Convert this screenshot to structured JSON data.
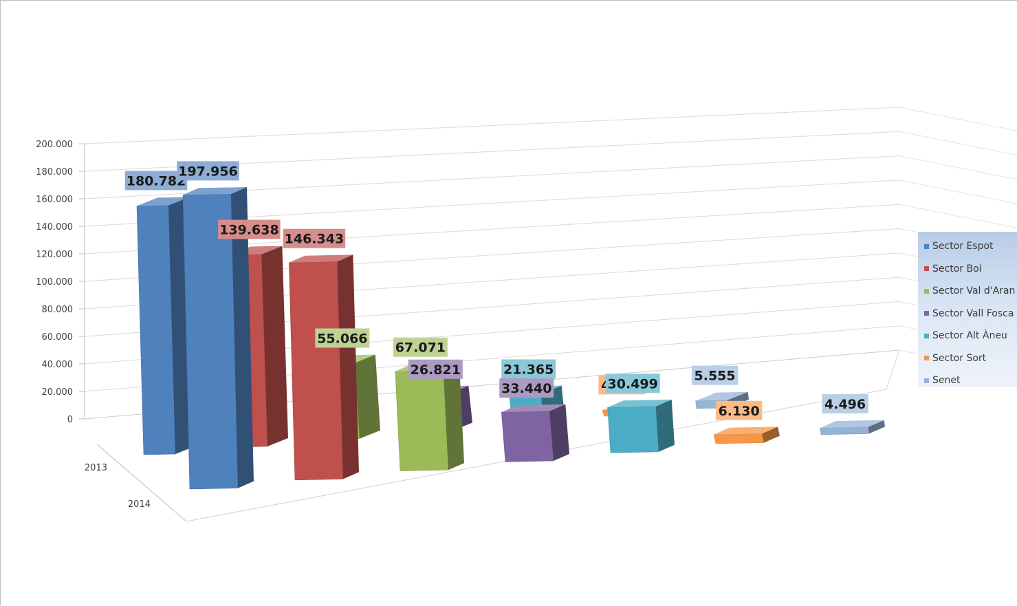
{
  "chart_data": {
    "type": "bar",
    "variant": "3d-column",
    "title": "",
    "xlabel": "",
    "ylabel": "",
    "ylim": [
      0,
      200000
    ],
    "y_ticks": [
      0,
      20000,
      40000,
      60000,
      80000,
      100000,
      120000,
      140000,
      160000,
      180000,
      200000
    ],
    "y_tick_labels": [
      "0",
      "20.000",
      "40.000",
      "60.000",
      "80.000",
      "100.000",
      "120.000",
      "140.000",
      "160.000",
      "180.000",
      "200.000"
    ],
    "depth_categories": [
      "2013",
      "2014"
    ],
    "grid": true,
    "legend_position": "right",
    "series": [
      {
        "name": "Sector Espot",
        "color": "#4f81bd",
        "values": [
          180782,
          197956
        ],
        "labels": [
          "180.782",
          "197.956"
        ]
      },
      {
        "name": "Sector Boí",
        "color": "#c0504d",
        "values": [
          139638,
          146343
        ],
        "labels": [
          "139.638",
          "146.343"
        ]
      },
      {
        "name": "Sector Val d'Aran",
        "color": "#9bbb59",
        "values": [
          55066,
          67071
        ],
        "labels": [
          "55.066",
          "67.071"
        ]
      },
      {
        "name": "Sector Vall Fosca",
        "color": "#8064a2",
        "values": [
          26821,
          33440
        ],
        "labels": [
          "26.821",
          "33.440"
        ]
      },
      {
        "name": "Sector Alt Àneu",
        "color": "#4bacc6",
        "values": [
          21365,
          30499
        ],
        "labels": [
          "21.365",
          "30.499"
        ]
      },
      {
        "name": "Sector Sort",
        "color": "#f79646",
        "values": [
          4302,
          6130
        ],
        "labels": [
          "4.302",
          "6.130"
        ]
      },
      {
        "name": "Senet",
        "color": "#95b3d7",
        "values": [
          5555,
          4496
        ],
        "labels": [
          "5.555",
          "4.496"
        ]
      }
    ]
  }
}
